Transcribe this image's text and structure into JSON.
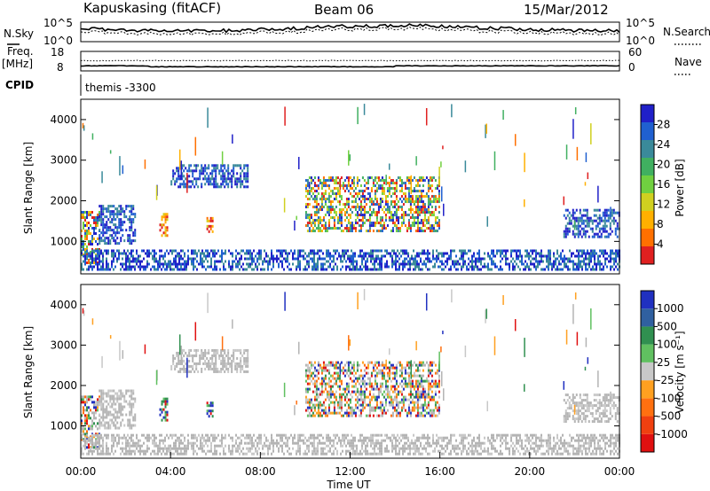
{
  "header": {
    "station": "Kapuskasing (fitACF)",
    "beam": "Beam 06",
    "date": "15/Mar/2012"
  },
  "panels": {
    "nsky_label": "N.Sky",
    "nsky_ticks": [
      "10^5",
      "10^0"
    ],
    "nsearch_label": "N.Search",
    "nsearch_ticks": [
      "10^5",
      "10^0"
    ],
    "freq_label": "Freq.",
    "freq_unit": "[MHz]",
    "freq_ticks": [
      "18",
      "8"
    ],
    "nave_label": "Nave",
    "nave_ticks": [
      "60",
      "0"
    ],
    "cpid_label": "CPID",
    "cpid_value": "themis -3300"
  },
  "chart_data": [
    {
      "type": "heatmap",
      "quantity": "Power",
      "ylabel": "Slant Range [km]",
      "xlabel": "",
      "ylim": [
        200,
        4500
      ],
      "yticks": [
        1000,
        2000,
        3000,
        4000
      ],
      "colorbar": {
        "label": "Power [dB]",
        "ticks": [
          28,
          24,
          20,
          16,
          12,
          8,
          4
        ],
        "colors": [
          "#2020c8",
          "#2060d0",
          "#3a8a9a",
          "#40b060",
          "#70d040",
          "#d0d020",
          "#ffb000",
          "#ff7000",
          "#e02020"
        ]
      },
      "features": [
        {
          "t0": 0.0,
          "t1": 0.9,
          "r0": 450,
          "r1": 1750,
          "level": "mixed"
        },
        {
          "t0": 0.8,
          "t1": 2.5,
          "r0": 900,
          "r1": 1900,
          "level": "low"
        },
        {
          "t0": 3.5,
          "t1": 3.9,
          "r0": 1100,
          "r1": 1700,
          "level": "high"
        },
        {
          "t0": 4.0,
          "t1": 7.5,
          "r0": 2300,
          "r1": 2900,
          "level": "low"
        },
        {
          "t0": 5.6,
          "t1": 5.9,
          "r0": 1200,
          "r1": 1600,
          "level": "high"
        },
        {
          "t0": 10.0,
          "t1": 16.0,
          "r0": 1200,
          "r1": 2600,
          "level": "mixed"
        },
        {
          "t0": 21.5,
          "t1": 24.0,
          "r0": 1100,
          "r1": 1800,
          "level": "low"
        },
        {
          "t0": 0.0,
          "t1": 24.0,
          "r0": 250,
          "r1": 800,
          "level": "low"
        }
      ]
    },
    {
      "type": "heatmap",
      "quantity": "Velocity",
      "ylabel": "Slant Range [km]",
      "xlabel": "Time UT",
      "ylim": [
        200,
        4500
      ],
      "yticks": [
        1000,
        2000,
        3000,
        4000
      ],
      "x_ticklabels": [
        "00:00",
        "04:00",
        "08:00",
        "12:00",
        "16:00",
        "20:00",
        "00:00"
      ],
      "colorbar": {
        "label": "Velocity [m s⁻¹]",
        "ticks": [
          1000,
          500,
          100,
          25,
          -25,
          -100,
          -500,
          -1000
        ],
        "colors": [
          "#2030c0",
          "#3060a0",
          "#309050",
          "#60c060",
          "#c8c8c8",
          "#ffa020",
          "#ff7010",
          "#f04010",
          "#e01010"
        ]
      }
    }
  ],
  "colors": {
    "axis": "#000000",
    "background": "#ffffff",
    "ground_scatter": "#b4b4b4"
  }
}
